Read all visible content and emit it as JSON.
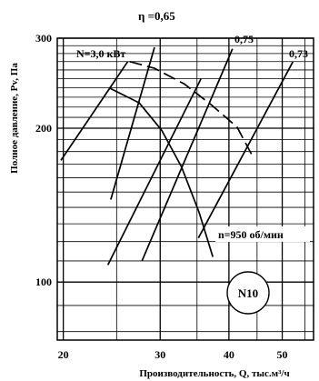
{
  "chart_data": {
    "type": "line",
    "title": "η =0,65",
    "xlabel": "Производительность, Q, тыс.м³/ч",
    "ylabel": "Полное давление, Pv, Па",
    "xscale": "log",
    "yscale": "log",
    "xlim": [
      19.5,
      57
    ],
    "ylim": [
      77,
      300
    ],
    "x_ticks": [
      20,
      30,
      40,
      50
    ],
    "y_ticks": [
      100,
      200,
      300
    ],
    "grid": true,
    "fan_label": "N10",
    "speed_label": "n=950 об/мин",
    "power_label": "N=3,0 кВт",
    "series": [
      {
        "name": "",
        "style": "solid",
        "points": [
          [
            19.8,
            173
          ],
          [
            26.2,
            270
          ]
        ]
      },
      {
        "name": "",
        "style": "solid",
        "points": [
          [
            24.2,
            240
          ],
          [
            27.5,
            224
          ],
          [
            30.2,
            198
          ],
          [
            32.8,
            168
          ],
          [
            35.3,
            137
          ],
          [
            37.4,
            112
          ]
        ]
      },
      {
        "name": "",
        "style": "dashed",
        "points": [
          [
            26.4,
            270
          ],
          [
            29.3,
            262
          ],
          [
            33.2,
            244
          ],
          [
            37.2,
            222
          ],
          [
            41.4,
            201
          ],
          [
            44.2,
            176
          ]
        ]
      },
      {
        "name": "0,75",
        "style": "solid",
        "points": [
          [
            27.8,
            110
          ],
          [
            40.6,
            286
          ]
        ]
      },
      {
        "name": "0,73",
        "style": "solid",
        "points": [
          [
            35.2,
            122
          ],
          [
            52.3,
            270
          ]
        ]
      },
      {
        "name": "",
        "style": "solid",
        "points": [
          [
            24.1,
            108
          ],
          [
            35.6,
            250
          ]
        ]
      },
      {
        "name": "",
        "style": "solid",
        "points": [
          [
            24.4,
            145
          ],
          [
            29.3,
            288
          ]
        ]
      }
    ]
  }
}
